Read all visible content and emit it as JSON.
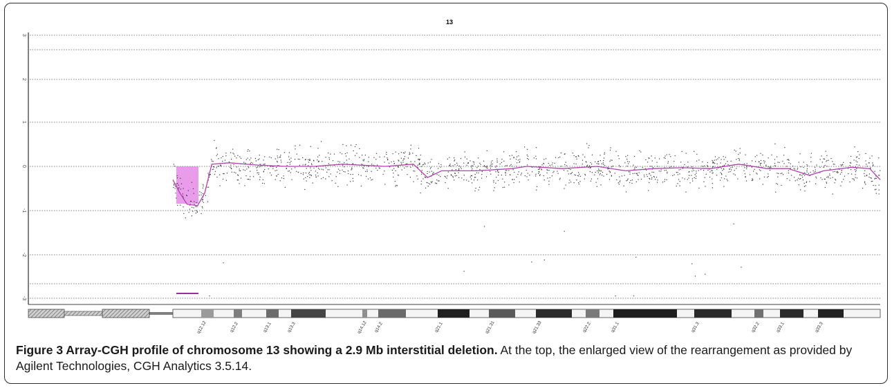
{
  "chart_data": {
    "type": "scatter",
    "title": "13",
    "xlabel": "",
    "ylabel": "",
    "y_tick_labels": [
      "3",
      "2",
      "1",
      "0",
      "-1",
      "-2",
      "-3"
    ],
    "ylim": [
      -3.1,
      3.1
    ],
    "grid": true,
    "chromosome": "13",
    "bands": [
      "q12.12",
      "q12.2",
      "q13.1",
      "q13.3",
      "q14.12",
      "q14.2",
      "q21.1",
      "q21.31",
      "q21.33",
      "q22.2",
      "q31.1",
      "q31.3",
      "q32.2",
      "q33.1",
      "q33.3"
    ],
    "deletion": {
      "size_mb": 2.9,
      "mean_log2_ratio": -0.9
    },
    "moving_average": [
      [
        0.0,
        -0.3
      ],
      [
        0.01,
        -0.6
      ],
      [
        0.02,
        -0.85
      ],
      [
        0.035,
        -0.88
      ],
      [
        0.045,
        -0.6
      ],
      [
        0.055,
        0.05
      ],
      [
        0.08,
        0.08
      ],
      [
        0.12,
        0.03
      ],
      [
        0.16,
        0.0
      ],
      [
        0.2,
        0.0
      ],
      [
        0.24,
        0.05
      ],
      [
        0.3,
        0.0
      ],
      [
        0.34,
        0.05
      ],
      [
        0.36,
        -0.25
      ],
      [
        0.38,
        -0.1
      ],
      [
        0.43,
        -0.1
      ],
      [
        0.48,
        -0.05
      ],
      [
        0.5,
        0.0
      ],
      [
        0.55,
        -0.05
      ],
      [
        0.6,
        0.0
      ],
      [
        0.64,
        -0.1
      ],
      [
        0.68,
        -0.05
      ],
      [
        0.72,
        -0.03
      ],
      [
        0.76,
        -0.05
      ],
      [
        0.8,
        0.05
      ],
      [
        0.84,
        -0.05
      ],
      [
        0.87,
        -0.05
      ],
      [
        0.9,
        -0.2
      ],
      [
        0.92,
        -0.1
      ],
      [
        0.96,
        -0.02
      ],
      [
        0.985,
        -0.05
      ],
      [
        1.0,
        -0.3
      ]
    ],
    "series": [
      {
        "name": "",
        "color": "#000000"
      },
      {
        "name": "",
        "color": "#b040b0"
      }
    ]
  },
  "caption": {
    "label": "Figure 3 Array-CGH profile of chromosome 13 showing a 2.9 Mb interstitial deletion.",
    "text": " At the top, the enlarged view of the rearrangement as provided by Agilent Technologies, CGH Analytics 3.5.14."
  },
  "colors": {
    "deletion_fill": "#e58be5",
    "moving_average": "#b040b0",
    "marker": "#9b2d9b",
    "grid": "#555555"
  }
}
